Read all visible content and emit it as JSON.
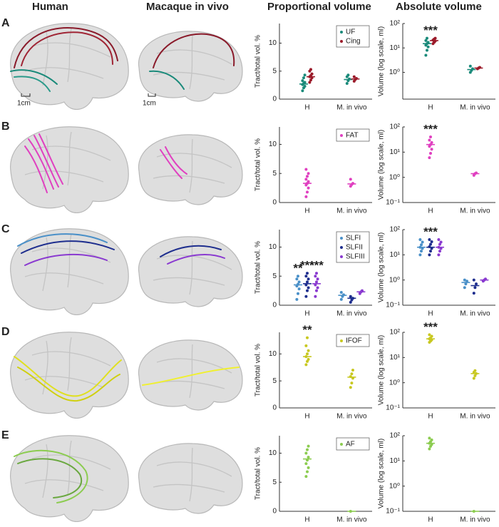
{
  "headers": [
    "Human",
    "Macaque in vivo",
    "Proportional volume",
    "Absolute volume"
  ],
  "row_labels": [
    "A",
    "B",
    "C",
    "D",
    "E"
  ],
  "scale_bars": [
    "1cm",
    "1cm"
  ],
  "chart_data": [
    {
      "type": "strip",
      "ylabel": "Tract/total vol. %",
      "categories": [
        "H",
        "M. in vivo"
      ],
      "ylim": [
        0,
        13.5
      ],
      "yticks": [
        0,
        5,
        10
      ],
      "log": false,
      "legend": true,
      "series": [
        {
          "name": "UF",
          "color": "#1a8a7a",
          "values": [
            [
              1.5,
              2,
              2.3,
              2.6,
              2.8,
              3,
              3.3,
              3.8,
              4.3
            ],
            [
              2.8,
              3.3,
              3.6,
              4,
              4.3
            ]
          ],
          "medians": [
            2.7,
            3.5
          ]
        },
        {
          "name": "Cing",
          "color": "#9b1b2a",
          "values": [
            [
              3,
              3.4,
              3.8,
              4,
              4.2,
              4.5,
              5,
              5.3
            ],
            [
              3.2,
              3.5,
              3.7,
              4
            ]
          ],
          "medians": [
            4,
            3.6
          ]
        }
      ],
      "annotations": []
    },
    {
      "type": "strip",
      "ylabel": "Volume (log scale, ml)",
      "categories": [
        "H",
        "M. in vivo"
      ],
      "ylim": [
        0.08,
        100
      ],
      "yticks": [
        {
          "value": 1,
          "label": "10⁰"
        },
        {
          "value": 10,
          "label": "10¹"
        },
        {
          "value": 100,
          "label": "10²"
        }
      ],
      "log": true,
      "legend": false,
      "series": [
        {
          "name": "UF",
          "color": "#1a8a7a",
          "values": [
            [
              5,
              8,
              11,
              13,
              15,
              17,
              20,
              25
            ],
            [
              1,
              1.2,
              1.4,
              1.8
            ]
          ],
          "medians": [
            15,
            1.3
          ]
        },
        {
          "name": "Cing",
          "color": "#9b1b2a",
          "values": [
            [
              15,
              17,
              19,
              21,
              23,
              25
            ],
            [
              1.4,
              1.5,
              1.6
            ]
          ],
          "medians": [
            20,
            1.5
          ]
        }
      ],
      "annotations": [
        "***"
      ]
    },
    {
      "type": "strip",
      "ylabel": "Tract/total vol. %",
      "categories": [
        "H",
        "M. in vivo"
      ],
      "ylim": [
        0,
        13
      ],
      "yticks": [
        0,
        5,
        10
      ],
      "log": false,
      "legend": true,
      "series": [
        {
          "name": "FAT",
          "color": "#e040c0",
          "values": [
            [
              1,
              1.8,
              2.5,
              3,
              3.3,
              3.6,
              4,
              4.5,
              5,
              5.7
            ],
            [
              2.8,
              3.1,
              3.3,
              4
            ]
          ],
          "medians": [
            3.3,
            3.2
          ]
        }
      ],
      "annotations": []
    },
    {
      "type": "strip",
      "ylabel": "Volume (log scale, ml)",
      "categories": [
        "H",
        "M. in vivo"
      ],
      "ylim": [
        0.1,
        100
      ],
      "yticks": [
        {
          "value": 0.1,
          "label": "10⁻¹"
        },
        {
          "value": 1,
          "label": "10⁰"
        },
        {
          "value": 10,
          "label": "10¹"
        },
        {
          "value": 100,
          "label": "10²"
        }
      ],
      "log": true,
      "legend": false,
      "series": [
        {
          "name": "FAT",
          "color": "#e040c0",
          "values": [
            [
              6,
              9,
              13,
              17,
              20,
              24,
              30,
              40
            ],
            [
              1.2,
              1.4,
              1.5
            ]
          ],
          "medians": [
            20,
            1.4
          ]
        }
      ],
      "annotations": [
        "***"
      ]
    },
    {
      "type": "strip",
      "ylabel": "Tract/total vol. %",
      "categories": [
        "H",
        "M. in vivo"
      ],
      "ylim": [
        0,
        13
      ],
      "yticks": [
        0,
        5,
        10
      ],
      "log": false,
      "legend": true,
      "series": [
        {
          "name": "SLFI",
          "color": "#4a90c8",
          "values": [
            [
              1,
              2,
              2.8,
              3.3,
              3.6,
              4,
              4.5,
              5
            ],
            [
              1,
              1.5,
              1.8,
              2.2
            ]
          ],
          "medians": [
            3.5,
            1.7
          ]
        },
        {
          "name": "SLFII",
          "color": "#1e2e8e",
          "values": [
            [
              1.5,
              2.5,
              3,
              3.5,
              4,
              4.5,
              5,
              5.5
            ],
            [
              0.5,
              0.9,
              1.2,
              1.5
            ]
          ],
          "medians": [
            3.7,
            1.2
          ]
        },
        {
          "name": "SLFIII",
          "color": "#8a3ad0",
          "values": [
            [
              1.5,
              2.5,
              3,
              3.5,
              4,
              4.5,
              5,
              5.5
            ],
            [
              2,
              2.3,
              2.5
            ]
          ],
          "medians": [
            3.7,
            2.3
          ]
        }
      ],
      "annotations": [
        "**",
        "***",
        "***"
      ]
    },
    {
      "type": "strip",
      "ylabel": "Volume (log scale, ml)",
      "categories": [
        "H",
        "M. in vivo"
      ],
      "ylim": [
        0.1,
        100
      ],
      "yticks": [
        {
          "value": 0.1,
          "label": "10⁻¹"
        },
        {
          "value": 1,
          "label": "10⁰"
        },
        {
          "value": 10,
          "label": "10¹"
        },
        {
          "value": 100,
          "label": "10²"
        }
      ],
      "log": true,
      "legend": false,
      "series": [
        {
          "name": "SLFI",
          "color": "#4a90c8",
          "values": [
            [
              10,
              14,
              18,
              20,
              25,
              32,
              40
            ],
            [
              0.5,
              0.7,
              0.9,
              1
            ]
          ],
          "medians": [
            20,
            0.8
          ]
        },
        {
          "name": "SLFII",
          "color": "#1e2e8e",
          "values": [
            [
              10,
              14,
              18,
              21,
              26,
              33,
              40
            ],
            [
              0.3,
              0.5,
              0.7,
              1
            ]
          ],
          "medians": [
            20,
            0.6
          ]
        },
        {
          "name": "SLFIII",
          "color": "#8a3ad0",
          "values": [
            [
              10,
              14,
              18,
              20,
              26,
              32,
              40
            ],
            [
              0.9,
              1,
              1.1
            ]
          ],
          "medians": [
            20,
            1
          ]
        }
      ],
      "annotations": [
        "***"
      ]
    },
    {
      "type": "strip",
      "ylabel": "Tract/total vol. %",
      "categories": [
        "H",
        "M. in vivo"
      ],
      "ylim": [
        0,
        14
      ],
      "yticks": [
        0,
        5,
        10
      ],
      "log": false,
      "legend": true,
      "series": [
        {
          "name": "IFOF",
          "color": "#c8c820",
          "values": [
            [
              8,
              8.6,
              9,
              9.5,
              10,
              10.6,
              11.5,
              13
            ],
            [
              3.8,
              4.6,
              5.5,
              5.8,
              6.3,
              7
            ]
          ],
          "medians": [
            9.5,
            5.7
          ]
        }
      ],
      "annotations": [
        "**"
      ]
    },
    {
      "type": "strip",
      "ylabel": "Volume (log scale, ml)",
      "categories": [
        "H",
        "M. in vivo"
      ],
      "ylim": [
        0.1,
        100
      ],
      "yticks": [
        {
          "value": 0.1,
          "label": "10⁻¹"
        },
        {
          "value": 1,
          "label": "10⁰"
        },
        {
          "value": 10,
          "label": "10¹"
        },
        {
          "value": 100,
          "label": "10²"
        }
      ],
      "log": true,
      "legend": false,
      "series": [
        {
          "name": "IFOF",
          "color": "#c8c820",
          "values": [
            [
              40,
              45,
              50,
              55,
              60,
              70,
              80
            ],
            [
              1.5,
              1.9,
              2.3,
              2.6,
              3
            ]
          ],
          "medians": [
            55,
            2.3
          ]
        }
      ],
      "annotations": [
        "***"
      ]
    },
    {
      "type": "strip",
      "ylabel": "Tract/total vol. %",
      "categories": [
        "H",
        "M. in vivo"
      ],
      "ylim": [
        0,
        13
      ],
      "yticks": [
        0,
        5,
        10
      ],
      "log": false,
      "legend": true,
      "series": [
        {
          "name": "AF",
          "color": "#8ccc50",
          "values": [
            [
              6,
              6.8,
              7.5,
              8.2,
              8.8,
              9.3,
              10,
              10.6,
              11.2
            ],
            [
              0
            ]
          ],
          "medians": [
            9,
            0
          ]
        }
      ],
      "annotations": []
    },
    {
      "type": "strip",
      "ylabel": "Volume (log scale, ml)",
      "categories": [
        "H",
        "M. in vivo"
      ],
      "ylim": [
        0.1,
        100
      ],
      "yticks": [
        {
          "value": 0.1,
          "label": "10⁻¹"
        },
        {
          "value": 1,
          "label": "10⁰"
        },
        {
          "value": 10,
          "label": "10¹"
        },
        {
          "value": 100,
          "label": "10²"
        }
      ],
      "log": true,
      "legend": false,
      "series": [
        {
          "name": "AF",
          "color": "#8ccc50",
          "values": [
            [
              30,
              38,
              45,
              50,
              58,
              68,
              80
            ],
            [
              0.1
            ]
          ],
          "medians": [
            50,
            0.1
          ]
        }
      ],
      "annotations": []
    }
  ]
}
